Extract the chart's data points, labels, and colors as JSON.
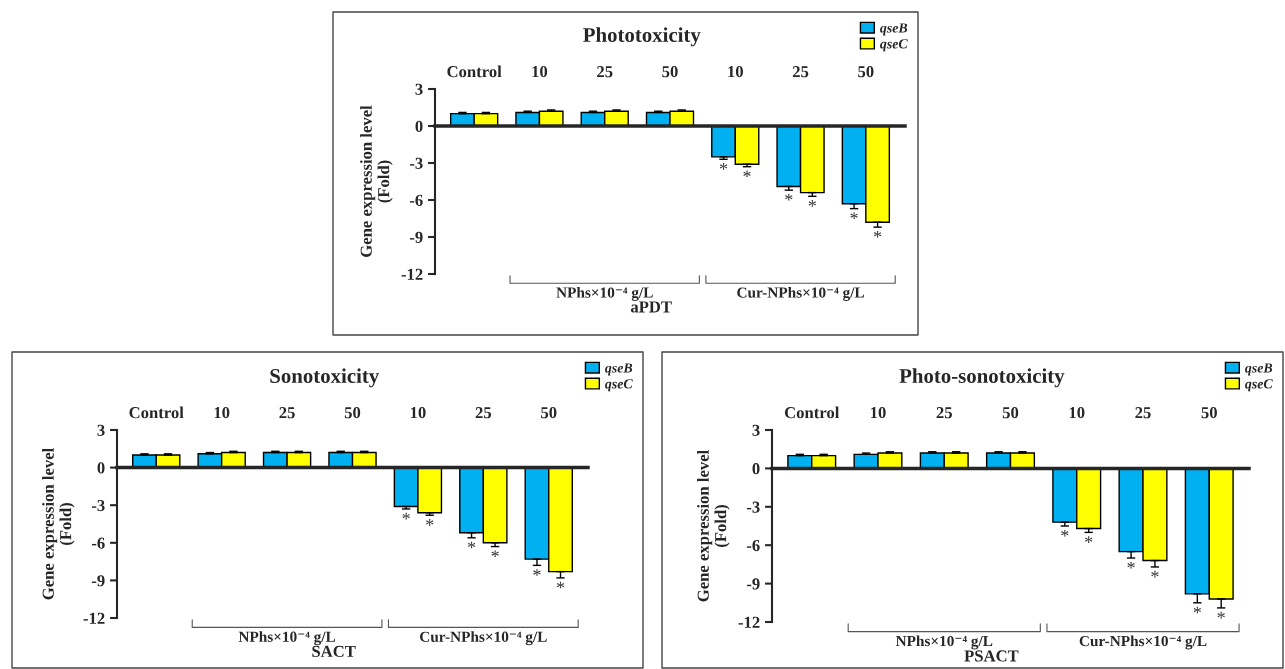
{
  "chart_data": [
    {
      "type": "bar",
      "title": "Phototoxicity",
      "xlabel": "aPDT",
      "ylabel": "Gene expression level\n(Fold)",
      "categories": [
        "Control",
        "10",
        "25",
        "50",
        "10",
        "25",
        "50"
      ],
      "ylim": [
        -12,
        3
      ],
      "yticks": [
        -12,
        -9,
        -6,
        -3,
        0,
        3
      ],
      "legend": "top right",
      "annotations": [
        "NPhs×10⁻⁴ g/L",
        "Cur-NPhs×10⁻⁴ g/L"
      ],
      "series": [
        {
          "name": "qseB",
          "color": "#00b0f0",
          "values": [
            1.0,
            1.1,
            1.1,
            1.1,
            -2.5,
            -4.9,
            -6.3
          ],
          "errors": [
            [
              1.0,
              1.1
            ],
            [
              1.1,
              1.2
            ],
            [
              1.1,
              1.2
            ],
            [
              1.1,
              1.2
            ],
            [
              -2.7,
              -2.5
            ],
            [
              -5.2,
              -4.9
            ],
            [
              -6.7,
              -6.3
            ]
          ],
          "value_labels": [
            null,
            null,
            null,
            null,
            "*",
            "*",
            "*"
          ]
        },
        {
          "name": "qseC",
          "color": "#ffff00",
          "values": [
            1.0,
            1.2,
            1.2,
            1.2,
            -3.1,
            -5.4,
            -7.8
          ],
          "errors": [
            [
              1.0,
              1.1
            ],
            [
              1.2,
              1.3
            ],
            [
              1.2,
              1.3
            ],
            [
              1.2,
              1.3
            ],
            [
              -3.3,
              -3.1
            ],
            [
              -5.7,
              -5.4
            ],
            [
              -8.2,
              -7.8
            ]
          ],
          "value_labels": [
            null,
            null,
            null,
            null,
            "*",
            "*",
            "*"
          ]
        }
      ]
    },
    {
      "type": "bar",
      "title": "Sonotoxicity",
      "xlabel": "SACT",
      "ylabel": "Gene expression level\n(Fold)",
      "categories": [
        "Control",
        "10",
        "25",
        "50",
        "10",
        "25",
        "50"
      ],
      "ylim": [
        -12,
        3
      ],
      "yticks": [
        -12,
        -9,
        -6,
        -3,
        0,
        3
      ],
      "legend": "top right",
      "annotations": [
        "NPhs×10⁻⁴ g/L",
        "Cur-NPhs×10⁻⁴ g/L"
      ],
      "series": [
        {
          "name": "qseB",
          "color": "#00b0f0",
          "values": [
            1.0,
            1.1,
            1.2,
            1.2,
            -3.1,
            -5.2,
            -7.3
          ],
          "errors": [
            [
              1.0,
              1.1
            ],
            [
              1.1,
              1.2
            ],
            [
              1.2,
              1.3
            ],
            [
              1.2,
              1.3
            ],
            [
              -3.3,
              -3.1
            ],
            [
              -5.6,
              -5.2
            ],
            [
              -7.8,
              -7.3
            ]
          ],
          "value_labels": [
            null,
            null,
            null,
            null,
            "*",
            "*",
            "*"
          ]
        },
        {
          "name": "qseC",
          "color": "#ffff00",
          "values": [
            1.0,
            1.2,
            1.2,
            1.2,
            -3.6,
            -6.0,
            -8.3
          ],
          "errors": [
            [
              1.0,
              1.1
            ],
            [
              1.2,
              1.3
            ],
            [
              1.2,
              1.3
            ],
            [
              1.2,
              1.3
            ],
            [
              -3.8,
              -3.6
            ],
            [
              -6.3,
              -6.0
            ],
            [
              -8.8,
              -8.3
            ]
          ],
          "value_labels": [
            null,
            null,
            null,
            null,
            "*",
            "*",
            "*"
          ]
        }
      ]
    },
    {
      "type": "bar",
      "title": "Photo-sonotoxicity",
      "xlabel": "PSACT",
      "ylabel": "Gene expression level\n(Fold)",
      "categories": [
        "Control",
        "10",
        "25",
        "50",
        "10",
        "25",
        "50"
      ],
      "ylim": [
        -12,
        3
      ],
      "yticks": [
        -12,
        -9,
        -6,
        -3,
        0,
        3
      ],
      "legend": "top right",
      "annotations": [
        "NPhs×10⁻⁴ g/L",
        "Cur-NPhs×10⁻⁴ g/L"
      ],
      "series": [
        {
          "name": "qseB",
          "color": "#00b0f0",
          "values": [
            1.0,
            1.1,
            1.2,
            1.2,
            -4.2,
            -6.5,
            -9.8
          ],
          "errors": [
            [
              1.0,
              1.1
            ],
            [
              1.1,
              1.2
            ],
            [
              1.2,
              1.3
            ],
            [
              1.2,
              1.3
            ],
            [
              -4.5,
              -4.2
            ],
            [
              -7.0,
              -6.5
            ],
            [
              -10.5,
              -9.8
            ]
          ],
          "value_labels": [
            null,
            null,
            null,
            null,
            "*",
            "*",
            "*"
          ]
        },
        {
          "name": "qseC",
          "color": "#ffff00",
          "values": [
            1.0,
            1.2,
            1.2,
            1.2,
            -4.7,
            -7.2,
            -10.2
          ],
          "errors": [
            [
              1.0,
              1.1
            ],
            [
              1.2,
              1.3
            ],
            [
              1.2,
              1.3
            ],
            [
              1.2,
              1.3
            ],
            [
              -5.0,
              -4.7
            ],
            [
              -7.7,
              -7.2
            ],
            [
              -10.9,
              -10.2
            ]
          ],
          "value_labels": [
            null,
            null,
            null,
            null,
            "*",
            "*",
            "*"
          ]
        }
      ]
    }
  ]
}
